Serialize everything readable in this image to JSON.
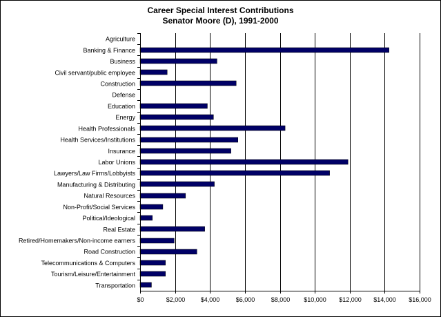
{
  "chart_data": {
    "type": "bar",
    "orientation": "horizontal",
    "title": "Career Special Interest Contributions",
    "subtitle": "Senator Moore (D), 1991-2000",
    "xlabel": "",
    "ylabel": "",
    "xlim": [
      0,
      16000
    ],
    "grid": "vertical",
    "legend": "none",
    "bar_color": "#000066",
    "x_ticks": [
      "$0",
      "$2,000",
      "$4,000",
      "$6,000",
      "$8,000",
      "$10,000",
      "$12,000",
      "$14,000",
      "$16,000"
    ],
    "categories": [
      "Agriculture",
      "Banking & Finance",
      "Business",
      "Civil servant/public employee",
      "Construction",
      "Defense",
      "Education",
      "Energy",
      "Health Professionals",
      "Health Services/Institutions",
      "Insurance",
      "Labor Unions",
      "Lawyers/Law Firms/Lobbyists",
      "Manufacturing & Distributing",
      "Natural Resources",
      "Non-Profit/Social Services",
      "Political/Ideological",
      "Real Estate",
      "Retired/Homemakers/Non-income earners",
      "Road Construction",
      "Telecommunications & Computers",
      "Tourism/Leisure/Entertainment",
      "Transportation"
    ],
    "values": [
      0,
      14250,
      4400,
      1550,
      5500,
      0,
      3850,
      4200,
      8300,
      5600,
      5200,
      11900,
      10850,
      4250,
      2600,
      1300,
      700,
      3700,
      1950,
      3250,
      1450,
      1450,
      650
    ]
  }
}
